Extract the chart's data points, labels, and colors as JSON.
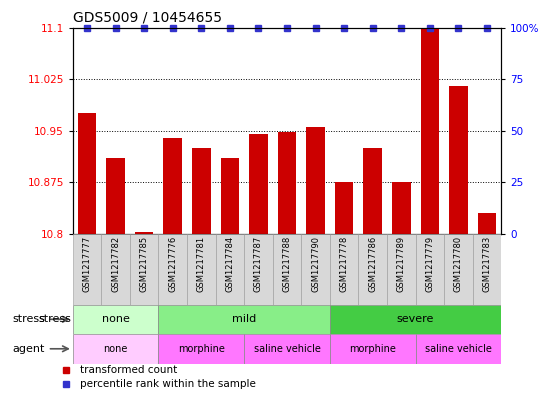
{
  "title": "GDS5009 / 10454655",
  "samples": [
    "GSM1217777",
    "GSM1217782",
    "GSM1217785",
    "GSM1217776",
    "GSM1217781",
    "GSM1217784",
    "GSM1217787",
    "GSM1217788",
    "GSM1217790",
    "GSM1217778",
    "GSM1217786",
    "GSM1217789",
    "GSM1217779",
    "GSM1217780",
    "GSM1217783"
  ],
  "bar_values": [
    10.975,
    10.91,
    10.803,
    10.94,
    10.925,
    10.91,
    10.945,
    10.948,
    10.955,
    10.875,
    10.925,
    10.875,
    11.1,
    11.015,
    10.83
  ],
  "ylim_left": [
    10.8,
    11.1
  ],
  "yticks_left": [
    10.8,
    10.875,
    10.95,
    11.025,
    11.1
  ],
  "ytick_labels_left": [
    "10.8",
    "10.875",
    "10.95",
    "11.025",
    "11.1"
  ],
  "yticks_right": [
    0,
    25,
    50,
    75,
    100
  ],
  "ytick_labels_right": [
    "0",
    "25",
    "50",
    "75",
    "100%"
  ],
  "bar_color": "#cc0000",
  "dot_color": "#3333cc",
  "stress_groups": [
    {
      "label": "none",
      "start": 0,
      "end": 3,
      "color": "#ccffcc"
    },
    {
      "label": "mild",
      "start": 3,
      "end": 9,
      "color": "#88ee88"
    },
    {
      "label": "severe",
      "start": 9,
      "end": 15,
      "color": "#44cc44"
    }
  ],
  "agent_groups": [
    {
      "label": "none",
      "start": 0,
      "end": 3,
      "color": "#ffccff"
    },
    {
      "label": "morphine",
      "start": 3,
      "end": 6,
      "color": "#ff77ff"
    },
    {
      "label": "saline vehicle",
      "start": 6,
      "end": 9,
      "color": "#ff77ff"
    },
    {
      "label": "morphine",
      "start": 9,
      "end": 12,
      "color": "#ff77ff"
    },
    {
      "label": "saline vehicle",
      "start": 12,
      "end": 15,
      "color": "#ff77ff"
    }
  ],
  "legend_items": [
    {
      "label": "transformed count",
      "color": "#cc0000",
      "marker": "s"
    },
    {
      "label": "percentile rank within the sample",
      "color": "#3333cc",
      "marker": "s"
    }
  ],
  "title_fontsize": 10,
  "bar_label_fontsize": 6,
  "group_label_fontsize": 8,
  "legend_fontsize": 7.5
}
